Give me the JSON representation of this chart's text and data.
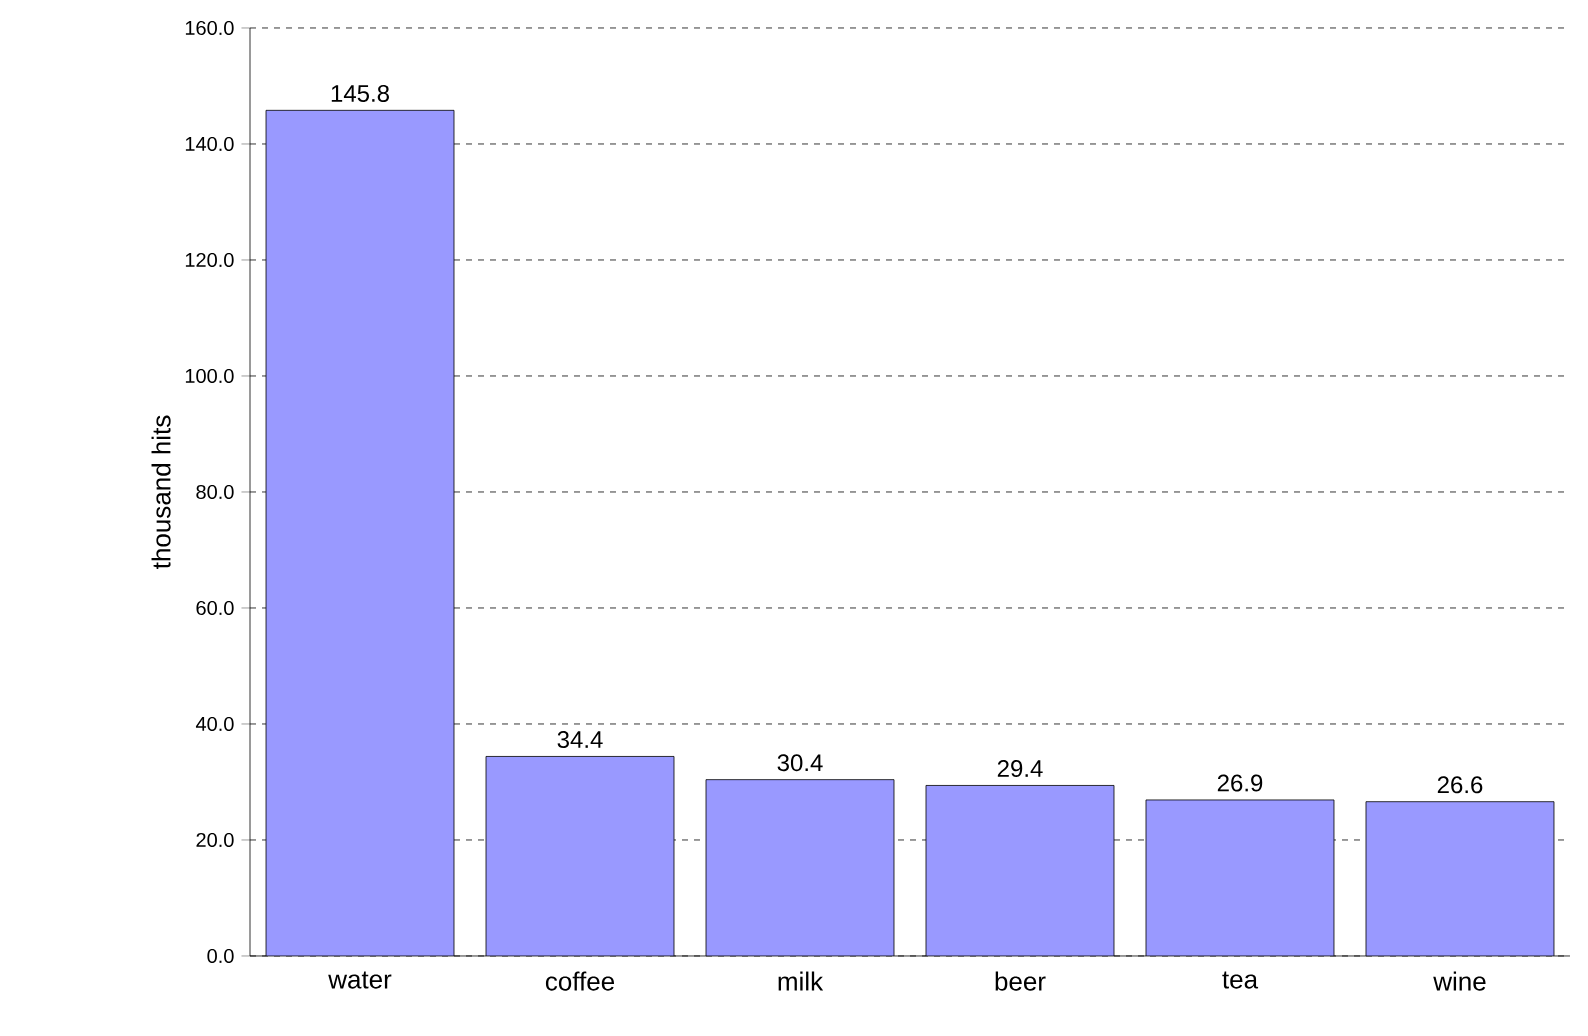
{
  "chart_data": {
    "type": "bar",
    "ylabel": "thousand hits",
    "categories": [
      "water",
      "coffee",
      "milk",
      "beer",
      "tea",
      "wine"
    ],
    "values": [
      145.8,
      34.4,
      30.4,
      29.4,
      26.9,
      26.6
    ],
    "color": "#9999ff",
    "data_labels": true,
    "grid": "y",
    "ylim": [
      0,
      160
    ],
    "yticks": [
      {
        "value": 0,
        "label": "0.0"
      },
      {
        "value": 20,
        "label": "20.0"
      },
      {
        "value": 40,
        "label": "40.0"
      },
      {
        "value": 60,
        "label": "60.0"
      },
      {
        "value": 80,
        "label": "80.0"
      },
      {
        "value": 100,
        "label": "100.0"
      },
      {
        "value": 120,
        "label": "120.0"
      },
      {
        "value": 140,
        "label": "140.0"
      },
      {
        "value": 160,
        "label": "160.0"
      }
    ]
  }
}
